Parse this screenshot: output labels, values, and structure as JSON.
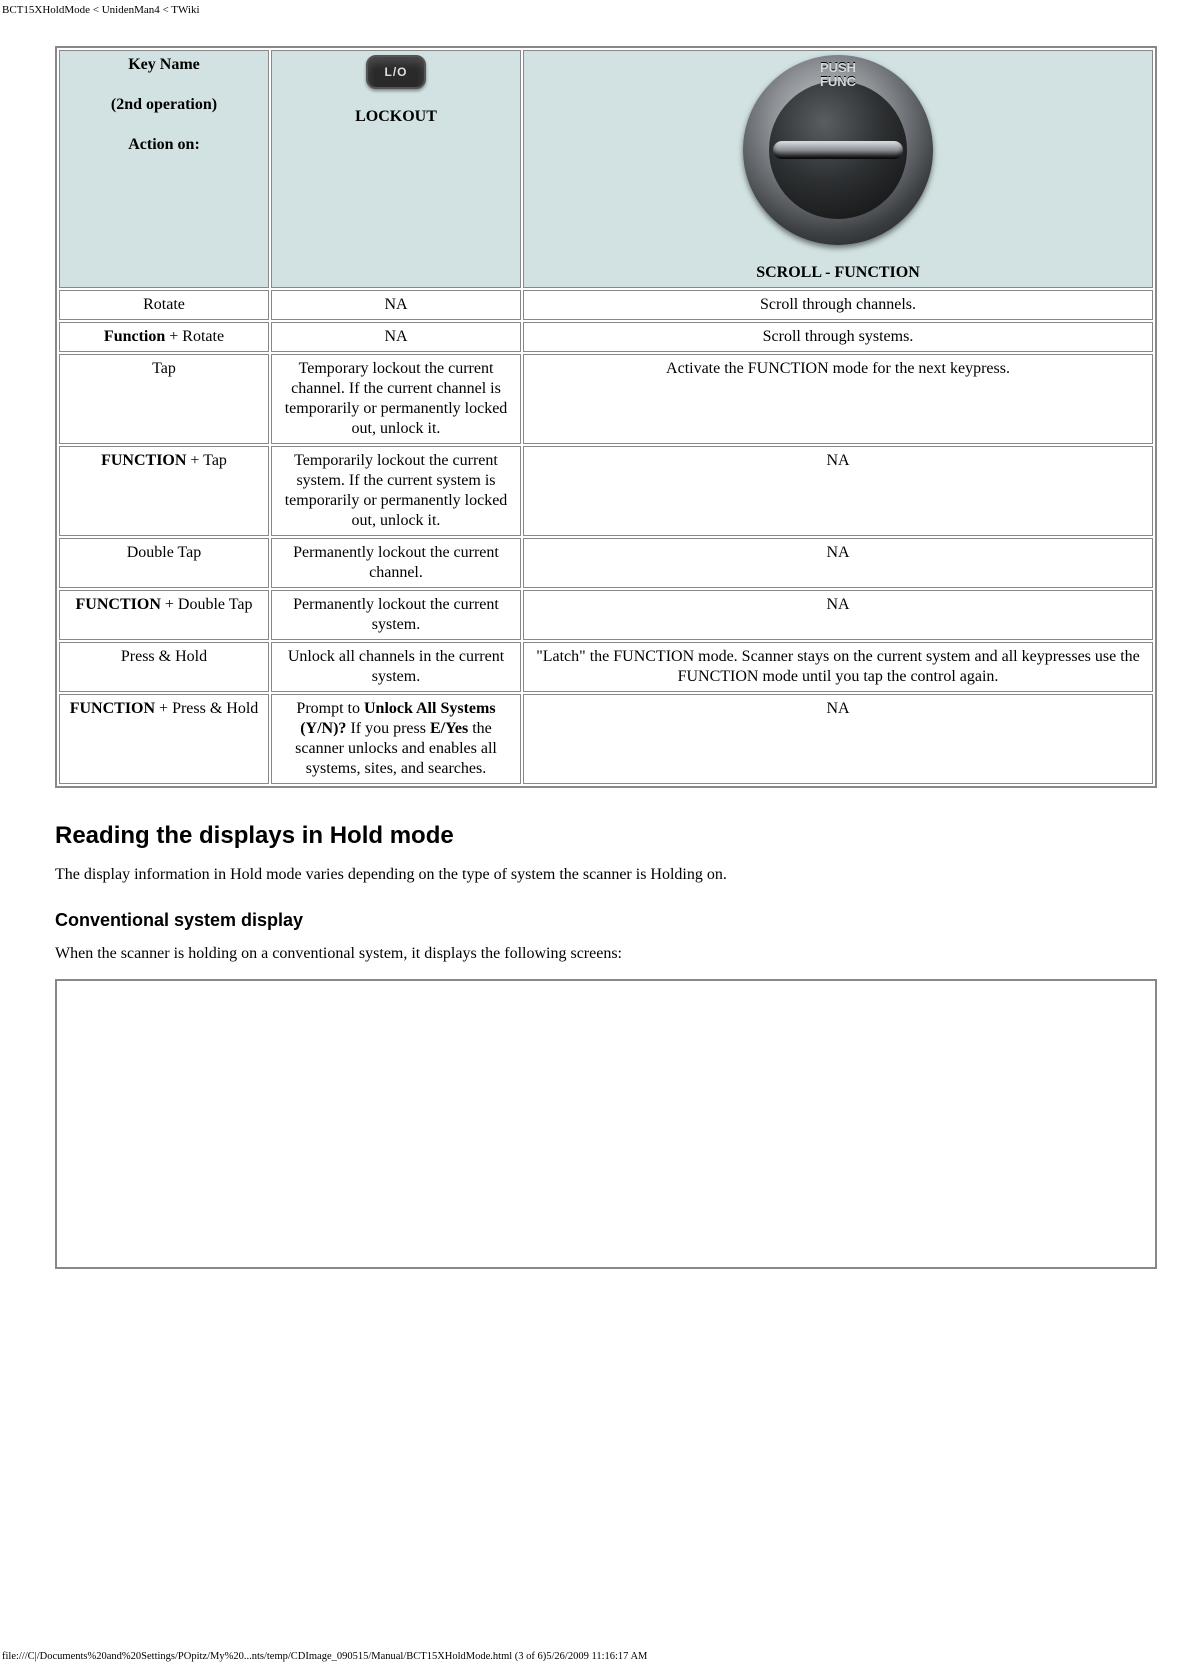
{
  "page": {
    "header_path": "BCT15XHoldMode < UnidenMan4 < TWiki",
    "footer_path": "file:///C|/Documents%20and%20Settings/POpitz/My%20...nts/temp/CDImage_090515/Manual/BCT15XHoldMode.html (3 of 6)5/26/2009 11:16:17 AM"
  },
  "table": {
    "header": {
      "key_line1": "Key Name",
      "key_line2": "(2nd operation)",
      "key_line3": "Action on:",
      "lockout_img_text": "L/O",
      "lockout_label": "LOCKOUT",
      "scroll_top1": "PUSH",
      "scroll_top2": "FUNC",
      "scroll_label": "SCROLL - FUNCTION"
    },
    "rows": [
      {
        "key_plain": "Rotate",
        "lockout": "NA",
        "scroll": "Scroll through channels."
      },
      {
        "key_bold_prefix": "Function",
        "key_rest": " + Rotate",
        "lockout": "NA",
        "scroll": "Scroll through systems."
      },
      {
        "key_plain": "Tap",
        "lockout": "Temporary lockout the current channel. If the current channel is temporarily or permanently locked out, unlock it.",
        "scroll": "Activate the FUNCTION mode for the next keypress."
      },
      {
        "key_bold_prefix": "FUNCTION",
        "key_rest": " + Tap",
        "lockout": "Temporarily lockout the current system. If the current system is temporarily or permanently locked out, unlock it.",
        "scroll": "NA"
      },
      {
        "key_plain": "Double Tap",
        "lockout": "Permanently lockout the current channel.",
        "scroll": "NA"
      },
      {
        "key_bold_prefix": "FUNCTION",
        "key_rest": " + Double Tap",
        "lockout": "Permanently lockout the current system.",
        "scroll": "NA"
      },
      {
        "key_plain": "Press & Hold",
        "lockout": "Unlock all channels in the current system.",
        "scroll": "\"Latch\" the FUNCTION mode. Scanner stays on the current system and all keypresses use the FUNCTION mode until you tap the control again."
      },
      {
        "key_bold_prefix": "FUNCTION",
        "key_rest": " + Press & Hold",
        "lockout_pre": "Prompt to ",
        "lockout_bold1": "Unlock All Systems (Y/N)?",
        "lockout_mid": " If you press ",
        "lockout_bold2": "E/Yes",
        "lockout_post": " the scanner unlocks and enables all systems, sites, and searches.",
        "scroll": "NA"
      }
    ]
  },
  "sections": {
    "h2": "Reading the displays in Hold mode",
    "p1": "The display information in Hold mode varies depending on the type of system the scanner is Holding on.",
    "h3": "Conventional system display",
    "p2": "When the scanner is holding on a conventional system, it displays the following screens:"
  },
  "colors": {
    "header_bg": "#d2e2e2",
    "border": "#888888"
  }
}
